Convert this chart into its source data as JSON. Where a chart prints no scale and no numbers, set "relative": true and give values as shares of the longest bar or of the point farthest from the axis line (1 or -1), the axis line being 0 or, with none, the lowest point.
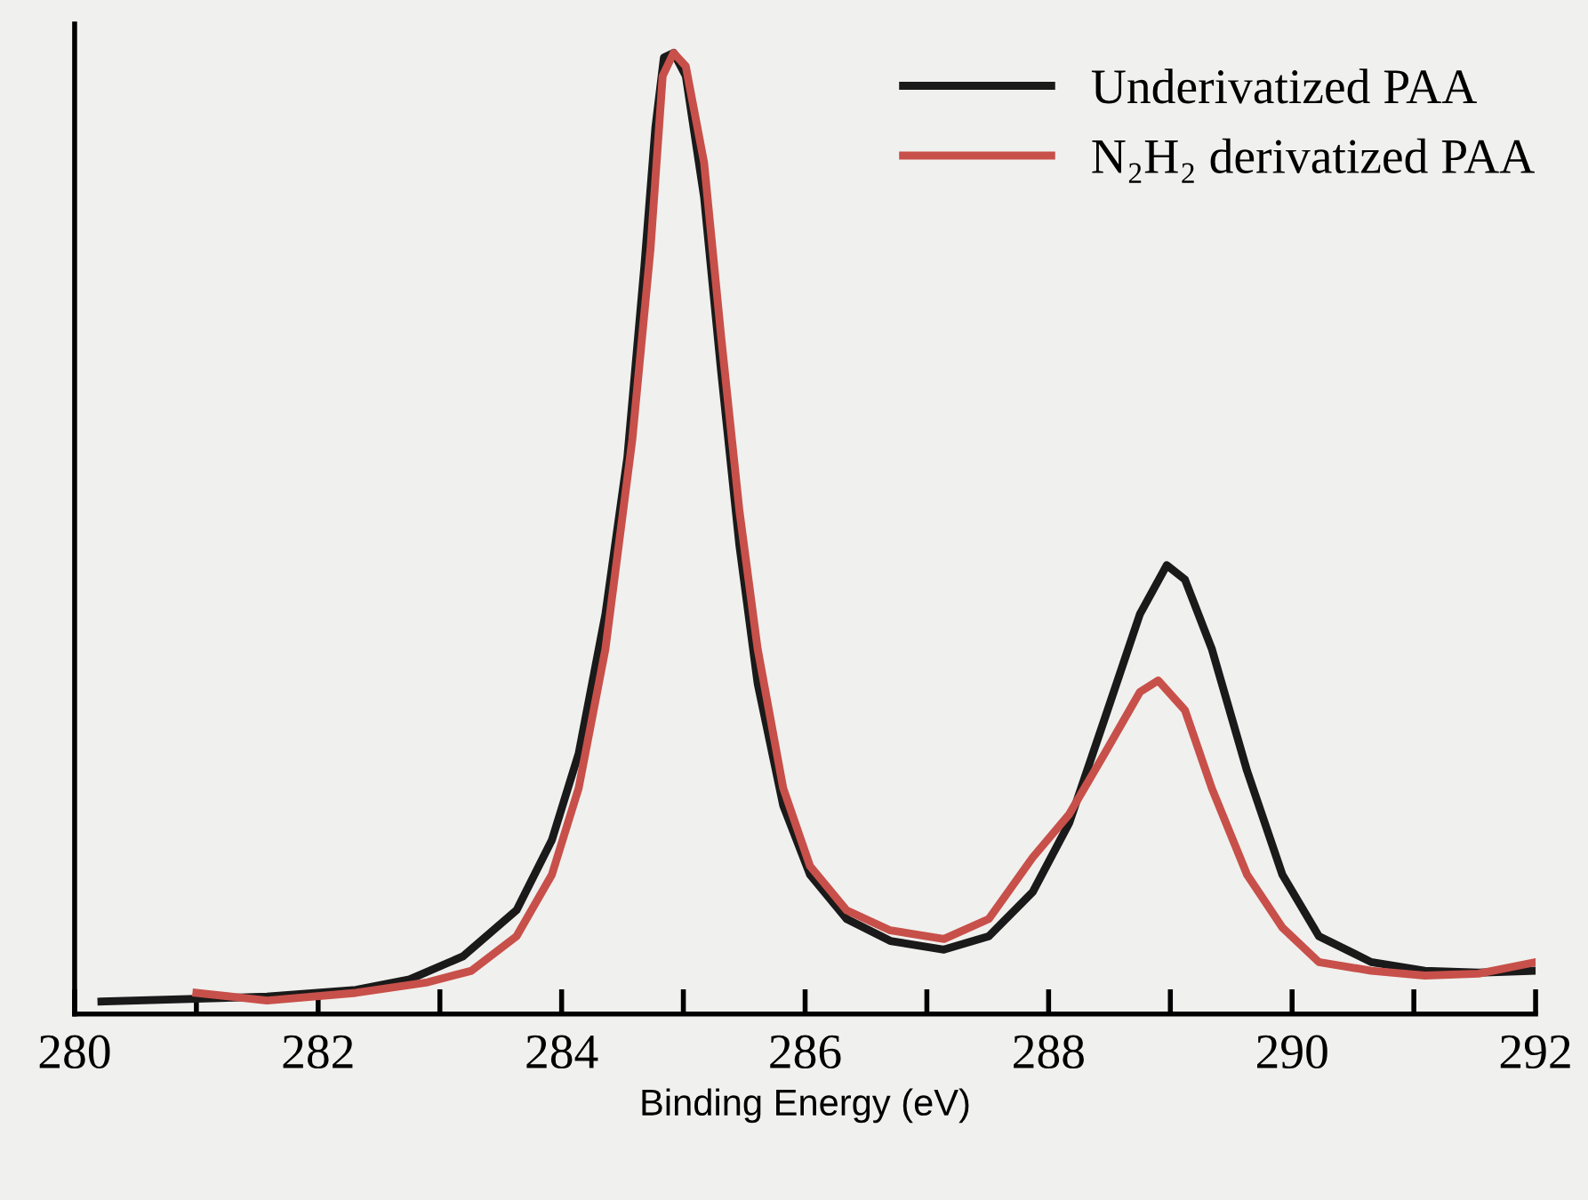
{
  "chart_data": {
    "type": "line",
    "xlabel": "Binding Energy (eV)",
    "relative": true,
    "tick_labels": "x",
    "legend": "top right",
    "grid": false,
    "marker": "none",
    "line_style": "solid",
    "xlim": [
      280,
      292
    ],
    "xticks": [
      280,
      {
        "value": 281,
        "label": null
      },
      282,
      {
        "value": 283,
        "label": null
      },
      284,
      {
        "value": 285,
        "label": null
      },
      286,
      {
        "value": 287,
        "label": null
      },
      288,
      {
        "value": 289,
        "label": null
      },
      290,
      {
        "value": 291,
        "label": null
      },
      292
    ],
    "series": [
      {
        "name": "Underivatized PAA",
        "color": "#1a1a1a",
        "x": [
          280.22,
          281.58,
          282.31,
          282.75,
          283.19,
          283.63,
          283.92,
          284.14,
          284.36,
          284.54,
          284.68,
          284.77,
          284.84,
          284.92,
          285.02,
          285.17,
          285.31,
          285.46,
          285.61,
          285.82,
          286.04,
          286.34,
          286.7,
          287.14,
          287.51,
          287.87,
          288.17,
          288.46,
          288.75,
          288.97,
          289.12,
          289.34,
          289.63,
          289.92,
          290.22,
          290.65,
          291.09,
          291.53,
          292.0
        ],
        "values": [
          0.013,
          0.018,
          0.025,
          0.036,
          0.06,
          0.108,
          0.181,
          0.271,
          0.416,
          0.579,
          0.778,
          0.922,
          0.995,
          1.0,
          0.976,
          0.85,
          0.669,
          0.488,
          0.344,
          0.217,
          0.145,
          0.099,
          0.076,
          0.067,
          0.081,
          0.127,
          0.199,
          0.307,
          0.416,
          0.467,
          0.452,
          0.38,
          0.253,
          0.145,
          0.081,
          0.054,
          0.045,
          0.043,
          0.045
        ]
      },
      {
        "name": "N₂H₂ derivatized PAA",
        "color": "#c8504a",
        "x": [
          281.0,
          281.58,
          282.31,
          282.9,
          283.26,
          283.63,
          283.92,
          284.14,
          284.36,
          284.58,
          284.73,
          284.83,
          284.92,
          285.02,
          285.17,
          285.31,
          285.46,
          285.61,
          285.82,
          286.04,
          286.34,
          286.7,
          287.14,
          287.51,
          287.87,
          288.17,
          288.46,
          288.75,
          288.9,
          289.12,
          289.34,
          289.63,
          289.92,
          290.22,
          290.65,
          291.09,
          291.53,
          292.0
        ],
        "values": [
          0.022,
          0.014,
          0.022,
          0.033,
          0.045,
          0.081,
          0.145,
          0.235,
          0.38,
          0.597,
          0.796,
          0.976,
          1.0,
          0.986,
          0.886,
          0.705,
          0.524,
          0.38,
          0.235,
          0.154,
          0.108,
          0.087,
          0.078,
          0.099,
          0.163,
          0.208,
          0.271,
          0.335,
          0.347,
          0.316,
          0.235,
          0.145,
          0.09,
          0.054,
          0.045,
          0.04,
          0.042,
          0.054
        ]
      }
    ]
  }
}
